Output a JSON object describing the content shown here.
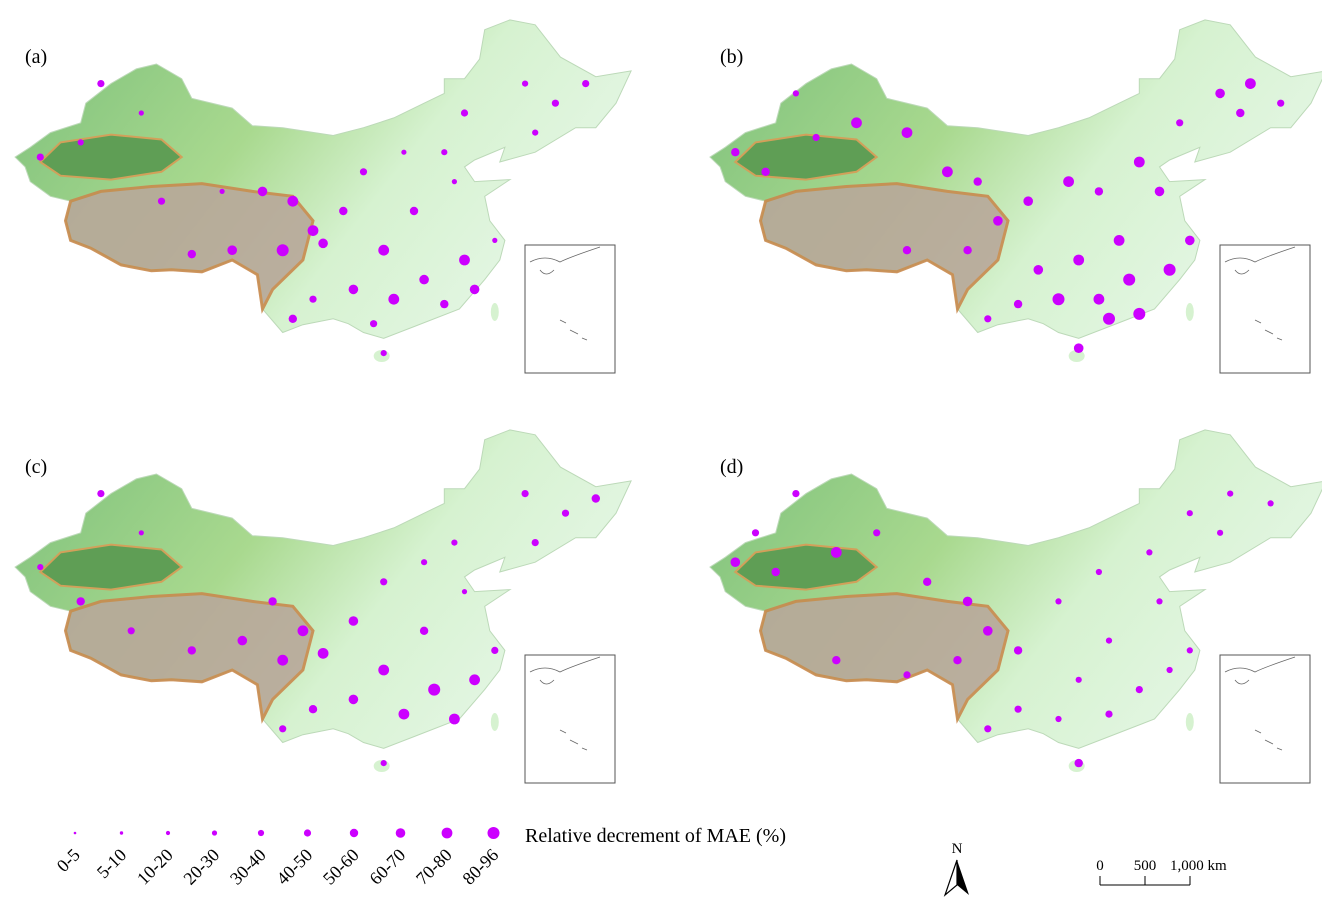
{
  "panels": [
    {
      "label": "(a)",
      "stations": [
        [
          82,
          47,
          5
        ],
        [
          86,
          44,
          3
        ],
        [
          80,
          41,
          4
        ],
        [
          76,
          39.5,
          5
        ],
        [
          88,
          35,
          5
        ],
        [
          94,
          36,
          3
        ],
        [
          98,
          36,
          7
        ],
        [
          101,
          35,
          8
        ],
        [
          103,
          32,
          8
        ],
        [
          100,
          30,
          9
        ],
        [
          95,
          30,
          7
        ],
        [
          91,
          29.6,
          6
        ],
        [
          104,
          30.7,
          7
        ],
        [
          106,
          34,
          6
        ],
        [
          108,
          38,
          5
        ],
        [
          112,
          40,
          3
        ],
        [
          116,
          40,
          4
        ],
        [
          118,
          44,
          5
        ],
        [
          124,
          47,
          4
        ],
        [
          127,
          45,
          5
        ],
        [
          130,
          47,
          5
        ],
        [
          125,
          42,
          4
        ],
        [
          117,
          37,
          3
        ],
        [
          113,
          34,
          6
        ],
        [
          110,
          30,
          8
        ],
        [
          114,
          27,
          7
        ],
        [
          118,
          29,
          8
        ],
        [
          111,
          25,
          8
        ],
        [
          116,
          24.5,
          6
        ],
        [
          119,
          26,
          7
        ],
        [
          107,
          26,
          7
        ],
        [
          103,
          25,
          5
        ],
        [
          101,
          23,
          6
        ],
        [
          109,
          22.5,
          5
        ],
        [
          121,
          31,
          3
        ],
        [
          110,
          19.5,
          4
        ]
      ]
    },
    {
      "label": "(b)",
      "stations": [
        [
          82,
          46,
          4
        ],
        [
          76,
          40,
          6
        ],
        [
          79,
          38,
          6
        ],
        [
          84,
          41.5,
          5
        ],
        [
          88,
          43,
          8
        ],
        [
          93,
          42,
          8
        ],
        [
          97,
          38,
          8
        ],
        [
          100,
          37,
          6
        ],
        [
          102,
          33,
          7
        ],
        [
          99,
          30,
          6
        ],
        [
          93,
          30,
          6
        ],
        [
          105,
          35,
          7
        ],
        [
          109,
          37,
          8
        ],
        [
          112,
          36,
          6
        ],
        [
          116,
          39,
          8
        ],
        [
          120,
          43,
          5
        ],
        [
          124,
          46,
          7
        ],
        [
          127,
          47,
          8
        ],
        [
          126,
          44,
          6
        ],
        [
          130,
          45,
          5
        ],
        [
          118,
          36,
          7
        ],
        [
          114,
          31,
          8
        ],
        [
          110,
          29,
          8
        ],
        [
          115,
          27,
          9
        ],
        [
          119,
          28,
          9
        ],
        [
          112,
          25,
          8
        ],
        [
          108,
          25,
          9
        ],
        [
          116,
          23.5,
          9
        ],
        [
          113,
          23,
          9
        ],
        [
          104,
          24.5,
          6
        ],
        [
          101,
          23,
          5
        ],
        [
          106,
          28,
          7
        ],
        [
          121,
          31,
          7
        ],
        [
          110,
          20,
          7
        ]
      ]
    },
    {
      "label": "(c)",
      "stations": [
        [
          82,
          47,
          5
        ],
        [
          86,
          43,
          3
        ],
        [
          76,
          39.5,
          4
        ],
        [
          80,
          36,
          6
        ],
        [
          85,
          33,
          5
        ],
        [
          91,
          31,
          6
        ],
        [
          96,
          32,
          7
        ],
        [
          100,
          30,
          8
        ],
        [
          102,
          33,
          8
        ],
        [
          99,
          36,
          6
        ],
        [
          104,
          30.7,
          8
        ],
        [
          107,
          34,
          7
        ],
        [
          110,
          38,
          5
        ],
        [
          114,
          40,
          4
        ],
        [
          117,
          42,
          4
        ],
        [
          124,
          47,
          5
        ],
        [
          128,
          45,
          5
        ],
        [
          131,
          46.5,
          6
        ],
        [
          125,
          42,
          5
        ],
        [
          118,
          37,
          3
        ],
        [
          114,
          33,
          6
        ],
        [
          110,
          29,
          8
        ],
        [
          115,
          27,
          9
        ],
        [
          119,
          28,
          8
        ],
        [
          112,
          24.5,
          8
        ],
        [
          117,
          24,
          8
        ],
        [
          107,
          26,
          7
        ],
        [
          103,
          25,
          6
        ],
        [
          100,
          23,
          5
        ],
        [
          121,
          31,
          5
        ],
        [
          110,
          19.5,
          4
        ]
      ]
    },
    {
      "label": "(d)",
      "stations": [
        [
          82,
          47,
          5
        ],
        [
          78,
          43,
          5
        ],
        [
          76,
          40,
          7
        ],
        [
          80,
          39,
          6
        ],
        [
          86,
          41,
          8
        ],
        [
          90,
          43,
          5
        ],
        [
          95,
          38,
          6
        ],
        [
          99,
          36,
          7
        ],
        [
          101,
          33,
          7
        ],
        [
          98,
          30,
          6
        ],
        [
          93,
          28.5,
          5
        ],
        [
          86,
          30,
          6
        ],
        [
          104,
          31,
          6
        ],
        [
          108,
          36,
          4
        ],
        [
          112,
          39,
          4
        ],
        [
          117,
          41,
          4
        ],
        [
          121,
          45,
          4
        ],
        [
          125,
          47,
          4
        ],
        [
          129,
          46,
          4
        ],
        [
          124,
          43,
          4
        ],
        [
          118,
          36,
          4
        ],
        [
          113,
          32,
          4
        ],
        [
          110,
          28,
          4
        ],
        [
          116,
          27,
          5
        ],
        [
          119,
          29,
          4
        ],
        [
          113,
          24.5,
          5
        ],
        [
          108,
          24,
          4
        ],
        [
          104,
          25,
          5
        ],
        [
          101,
          23,
          5
        ],
        [
          121,
          31,
          4
        ],
        [
          110,
          19.5,
          6
        ]
      ]
    }
  ],
  "legend": {
    "title": "Relative decrement of MAE (%)",
    "classes": [
      "0-5",
      "5-10",
      "10-20",
      "20-30",
      "30-40",
      "40-50",
      "50-60",
      "60-70",
      "70-80",
      "80-96"
    ]
  },
  "north_arrow": "N",
  "scale_bar": {
    "ticks": [
      0,
      500,
      {
        "value": 1000,
        "label": "1,000 km"
      }
    ]
  }
}
